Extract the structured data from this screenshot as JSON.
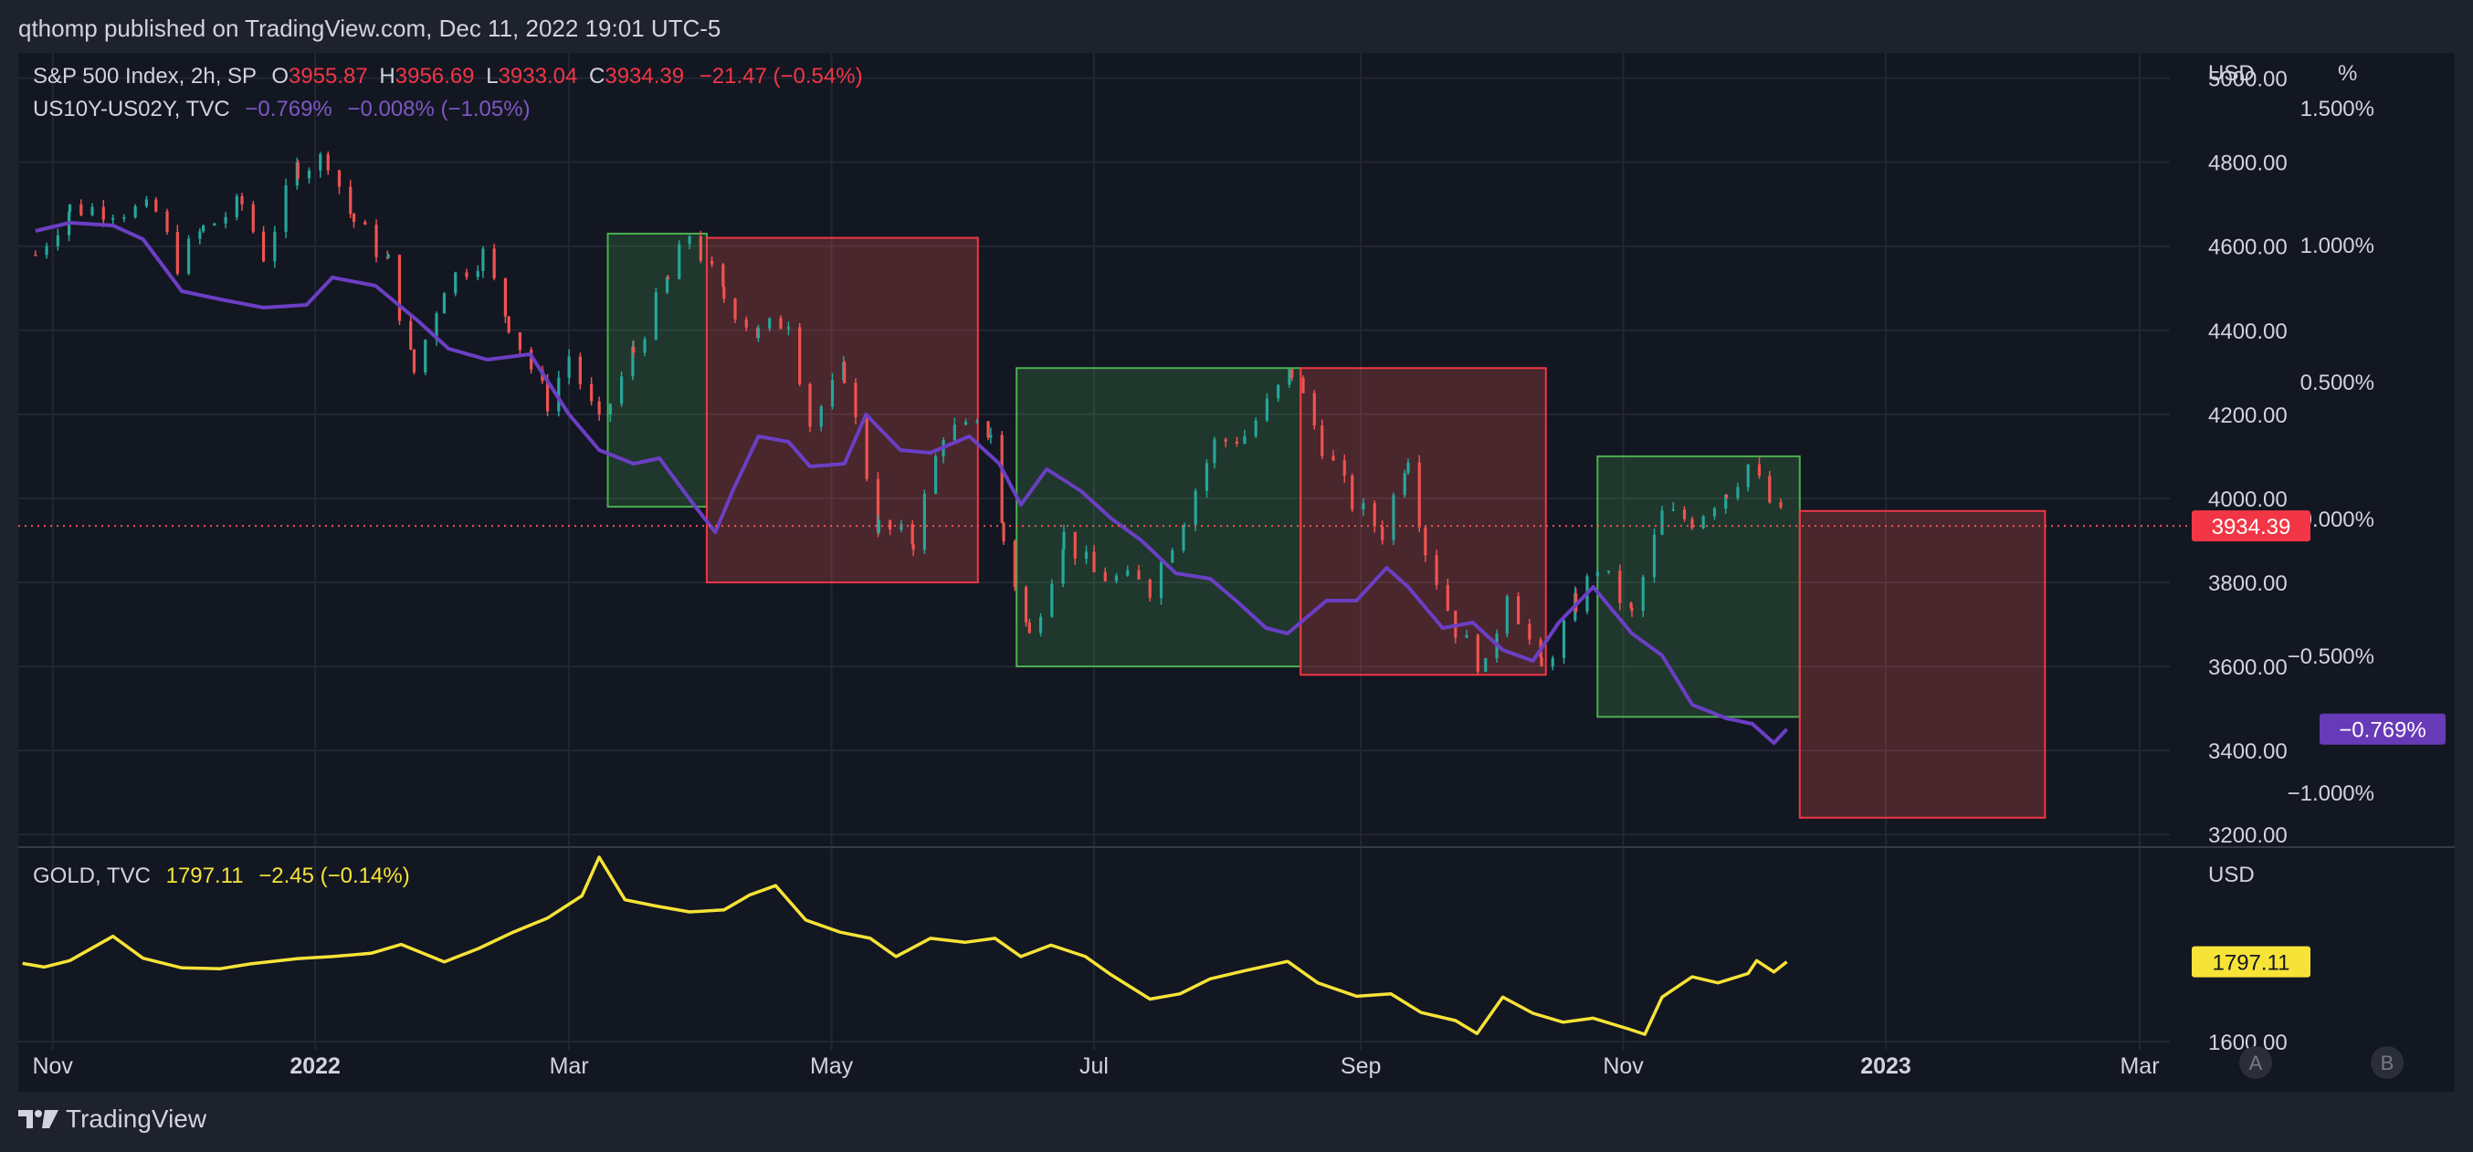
{
  "header": {
    "published": "qthomp published on TradingView.com, Dec 11, 2022 19:01 UTC-5"
  },
  "footer": {
    "brand": "TradingView"
  },
  "colors": {
    "background": "#131722",
    "frame": "#1e222d",
    "up": "#26a69a",
    "down": "#ef5350",
    "spread": "#6b3fc4",
    "gold": "#f7e337",
    "box_green_fill": "rgba(76,175,80,0.22)",
    "box_green_stroke": "#4caf50",
    "box_red_fill": "rgba(239,83,80,0.25)",
    "box_red_stroke": "#f23645"
  },
  "legend": {
    "main": {
      "name": "S&P 500 Index, 2h, SP",
      "o_label": "O",
      "o_value": "3955.87",
      "h_label": "H",
      "h_value": "3956.69",
      "l_label": "L",
      "l_value": "3933.04",
      "c_label": "C",
      "c_value": "3934.39",
      "change": "−21.47 (−0.54%)"
    },
    "spread": {
      "name": "US10Y-US02Y, TVC",
      "value": "−0.769%",
      "change": "−0.008% (−1.05%)"
    },
    "gold": {
      "name": "GOLD, TVC",
      "value": "1797.11",
      "change": "−2.45 (−0.14%)"
    }
  },
  "price_tags": {
    "spx": "3934.39",
    "spread": "−0.769%",
    "gold": "1797.11"
  },
  "scale_buttons": [
    "A",
    "B"
  ],
  "chart_data": [
    {
      "type": "candlestick",
      "series": [
        {
          "name": "S&P 500 Index, 2h, SP",
          "points": [
            [
              "2021-10-28",
              4580
            ],
            [
              "2021-11-05",
              4690
            ],
            [
              "2021-11-15",
              4690
            ],
            [
              "2021-11-25",
              4680
            ],
            [
              "2021-11-30",
              4560
            ],
            [
              "2021-12-06",
              4640
            ],
            [
              "2021-12-15",
              4700
            ],
            [
              "2021-12-20",
              4580
            ],
            [
              "2021-12-28",
              4790
            ],
            [
              "2022-01-04",
              4810
            ],
            [
              "2022-01-10",
              4660
            ],
            [
              "2022-01-18",
              4560
            ],
            [
              "2022-01-24",
              4300
            ],
            [
              "2022-01-31",
              4510
            ],
            [
              "2022-02-09",
              4580
            ],
            [
              "2022-02-15",
              4420
            ],
            [
              "2022-02-24",
              4230
            ],
            [
              "2022-03-01",
              4340
            ],
            [
              "2022-03-08",
              4170
            ],
            [
              "2022-03-16",
              4350
            ],
            [
              "2022-03-24",
              4520
            ],
            [
              "2022-03-29",
              4630
            ],
            [
              "2022-04-06",
              4480
            ],
            [
              "2022-04-14",
              4390
            ],
            [
              "2022-04-21",
              4430
            ],
            [
              "2022-04-26",
              4180
            ],
            [
              "2022-05-04",
              4300
            ],
            [
              "2022-05-12",
              3930
            ],
            [
              "2022-05-20",
              3900
            ],
            [
              "2022-05-27",
              4160
            ],
            [
              "2022-06-07",
              4160
            ],
            [
              "2022-06-10",
              3900
            ],
            [
              "2022-06-16",
              3670
            ],
            [
              "2022-06-24",
              3910
            ],
            [
              "2022-07-01",
              3820
            ],
            [
              "2022-07-14",
              3790
            ],
            [
              "2022-07-22",
              3960
            ],
            [
              "2022-07-29",
              4130
            ],
            [
              "2022-08-05",
              4150
            ],
            [
              "2022-08-16",
              4300
            ],
            [
              "2022-08-23",
              4130
            ],
            [
              "2022-08-30",
              3990
            ],
            [
              "2022-09-06",
              3920
            ],
            [
              "2022-09-12",
              4110
            ],
            [
              "2022-09-16",
              3880
            ],
            [
              "2022-09-23",
              3690
            ],
            [
              "2022-09-30",
              3590
            ],
            [
              "2022-10-05",
              3790
            ],
            [
              "2022-10-13",
              3590
            ],
            [
              "2022-10-21",
              3750
            ],
            [
              "2022-10-26",
              3840
            ],
            [
              "2022-11-03",
              3720
            ],
            [
              "2022-11-10",
              3960
            ],
            [
              "2022-11-17",
              3950
            ],
            [
              "2022-11-25",
              4020
            ],
            [
              "2022-11-30",
              4080
            ],
            [
              "2022-12-05",
              3990
            ],
            [
              "2022-12-09",
              3934.39
            ]
          ]
        },
        {
          "name": "US10Y-US02Y, TVC",
          "points": [
            [
              "2021-10-28",
              1.05
            ],
            [
              "2021-11-05",
              1.08
            ],
            [
              "2021-11-15",
              1.07
            ],
            [
              "2021-11-22",
              1.02
            ],
            [
              "2021-12-01",
              0.83
            ],
            [
              "2021-12-10",
              0.8
            ],
            [
              "2021-12-20",
              0.77
            ],
            [
              "2021-12-30",
              0.78
            ],
            [
              "2022-01-05",
              0.88
            ],
            [
              "2022-01-15",
              0.85
            ],
            [
              "2022-01-25",
              0.72
            ],
            [
              "2022-02-01",
              0.62
            ],
            [
              "2022-02-10",
              0.58
            ],
            [
              "2022-02-20",
              0.6
            ],
            [
              "2022-03-01",
              0.38
            ],
            [
              "2022-03-08",
              0.25
            ],
            [
              "2022-03-16",
              0.2
            ],
            [
              "2022-03-22",
              0.22
            ],
            [
              "2022-03-30",
              0.05
            ],
            [
              "2022-04-04",
              -0.05
            ],
            [
              "2022-04-08",
              0.1
            ],
            [
              "2022-04-14",
              0.3
            ],
            [
              "2022-04-21",
              0.28
            ],
            [
              "2022-04-26",
              0.19
            ],
            [
              "2022-05-04",
              0.2
            ],
            [
              "2022-05-09",
              0.38
            ],
            [
              "2022-05-17",
              0.25
            ],
            [
              "2022-05-24",
              0.24
            ],
            [
              "2022-06-02",
              0.3
            ],
            [
              "2022-06-09",
              0.2
            ],
            [
              "2022-06-14",
              0.05
            ],
            [
              "2022-06-20",
              0.18
            ],
            [
              "2022-06-28",
              0.1
            ],
            [
              "2022-07-05",
              0.0
            ],
            [
              "2022-07-12",
              -0.08
            ],
            [
              "2022-07-20",
              -0.2
            ],
            [
              "2022-07-28",
              -0.22
            ],
            [
              "2022-08-03",
              -0.3
            ],
            [
              "2022-08-10",
              -0.4
            ],
            [
              "2022-08-15",
              -0.42
            ],
            [
              "2022-08-24",
              -0.3
            ],
            [
              "2022-08-31",
              -0.3
            ],
            [
              "2022-09-07",
              -0.18
            ],
            [
              "2022-09-12",
              -0.25
            ],
            [
              "2022-09-20",
              -0.4
            ],
            [
              "2022-09-27",
              -0.38
            ],
            [
              "2022-10-04",
              -0.48
            ],
            [
              "2022-10-11",
              -0.52
            ],
            [
              "2022-10-17",
              -0.38
            ],
            [
              "2022-10-25",
              -0.25
            ],
            [
              "2022-11-03",
              -0.42
            ],
            [
              "2022-11-10",
              -0.5
            ],
            [
              "2022-11-17",
              -0.68
            ],
            [
              "2022-11-25",
              -0.73
            ],
            [
              "2022-12-01",
              -0.75
            ],
            [
              "2022-12-06",
              -0.82
            ],
            [
              "2022-12-09",
              -0.769
            ]
          ]
        }
      ],
      "x_ticks": [
        {
          "date": "2021-11-01",
          "label": "Nov",
          "bold": false
        },
        {
          "date": "2022-01-01",
          "label": "2022",
          "bold": true
        },
        {
          "date": "2022-03-01",
          "label": "Mar",
          "bold": false
        },
        {
          "date": "2022-05-01",
          "label": "May",
          "bold": false
        },
        {
          "date": "2022-07-01",
          "label": "Jul",
          "bold": false
        },
        {
          "date": "2022-09-01",
          "label": "Sep",
          "bold": false
        },
        {
          "date": "2022-11-01",
          "label": "Nov",
          "bold": false
        },
        {
          "date": "2023-01-01",
          "label": "2023",
          "bold": true
        },
        {
          "date": "2023-03-01",
          "label": "Mar",
          "bold": false
        }
      ],
      "xlim": [
        "2021-10-24",
        "2023-03-08"
      ],
      "y_left": {
        "unit": "USD",
        "ticks": [
          "5000.00",
          "4800.00",
          "4600.00",
          "4400.00",
          "4200.00",
          "4000.00",
          "3800.00",
          "3600.00",
          "3400.00",
          "3200.00"
        ],
        "ylim": [
          3170,
          5060
        ]
      },
      "y_right": {
        "unit": "%",
        "ticks": [
          "1.500%",
          "1.000%",
          "0.500%",
          "0.000%",
          "−0.500%",
          "−1.000%"
        ],
        "ylim": [
          -1.2,
          1.7
        ]
      },
      "last_value_line": 3934.39,
      "boxes": [
        {
          "kind": "green",
          "x0": "2022-03-10",
          "x1": "2022-04-02",
          "y0": 3980,
          "y1": 4630
        },
        {
          "kind": "red",
          "x0": "2022-04-02",
          "x1": "2022-06-04",
          "y0": 3800,
          "y1": 4620
        },
        {
          "kind": "green",
          "x0": "2022-06-13",
          "x1": "2022-08-18",
          "y0": 3600,
          "y1": 4310
        },
        {
          "kind": "red",
          "x0": "2022-08-18",
          "x1": "2022-10-14",
          "y0": 3580,
          "y1": 4310
        },
        {
          "kind": "green",
          "x0": "2022-10-26",
          "x1": "2022-12-12",
          "y0": 3480,
          "y1": 4100
        },
        {
          "kind": "red",
          "x0": "2022-12-12",
          "x1": "2023-02-07",
          "y0": 3240,
          "y1": 3970
        }
      ]
    },
    {
      "type": "line",
      "series": [
        {
          "name": "GOLD, TVC",
          "points": [
            [
              "2021-10-25",
              1793
            ],
            [
              "2021-10-30",
              1784
            ],
            [
              "2021-11-05",
              1800
            ],
            [
              "2021-11-15",
              1860
            ],
            [
              "2021-11-22",
              1806
            ],
            [
              "2021-12-01",
              1782
            ],
            [
              "2021-12-10",
              1780
            ],
            [
              "2021-12-17",
              1792
            ],
            [
              "2021-12-28",
              1805
            ],
            [
              "2022-01-05",
              1810
            ],
            [
              "2022-01-14",
              1818
            ],
            [
              "2022-01-21",
              1840
            ],
            [
              "2022-01-31",
              1797
            ],
            [
              "2022-02-08",
              1830
            ],
            [
              "2022-02-16",
              1870
            ],
            [
              "2022-02-24",
              1905
            ],
            [
              "2022-03-04",
              1960
            ],
            [
              "2022-03-08",
              2055
            ],
            [
              "2022-03-14",
              1950
            ],
            [
              "2022-03-21",
              1935
            ],
            [
              "2022-03-29",
              1920
            ],
            [
              "2022-04-06",
              1925
            ],
            [
              "2022-04-12",
              1962
            ],
            [
              "2022-04-18",
              1985
            ],
            [
              "2022-04-25",
              1900
            ],
            [
              "2022-05-03",
              1870
            ],
            [
              "2022-05-10",
              1855
            ],
            [
              "2022-05-16",
              1810
            ],
            [
              "2022-05-24",
              1855
            ],
            [
              "2022-06-01",
              1845
            ],
            [
              "2022-06-08",
              1855
            ],
            [
              "2022-06-14",
              1810
            ],
            [
              "2022-06-21",
              1838
            ],
            [
              "2022-06-29",
              1810
            ],
            [
              "2022-07-05",
              1765
            ],
            [
              "2022-07-14",
              1705
            ],
            [
              "2022-07-21",
              1718
            ],
            [
              "2022-07-28",
              1755
            ],
            [
              "2022-08-05",
              1775
            ],
            [
              "2022-08-15",
              1798
            ],
            [
              "2022-08-22",
              1745
            ],
            [
              "2022-08-31",
              1712
            ],
            [
              "2022-09-08",
              1718
            ],
            [
              "2022-09-15",
              1672
            ],
            [
              "2022-09-23",
              1652
            ],
            [
              "2022-09-28",
              1620
            ],
            [
              "2022-10-04",
              1710
            ],
            [
              "2022-10-11",
              1670
            ],
            [
              "2022-10-18",
              1648
            ],
            [
              "2022-10-25",
              1658
            ],
            [
              "2022-11-02",
              1632
            ],
            [
              "2022-11-06",
              1618
            ],
            [
              "2022-11-10",
              1710
            ],
            [
              "2022-11-17",
              1760
            ],
            [
              "2022-11-23",
              1745
            ],
            [
              "2022-11-30",
              1768
            ],
            [
              "2022-12-02",
              1800
            ],
            [
              "2022-12-06",
              1772
            ],
            [
              "2022-12-09",
              1797.11
            ]
          ]
        }
      ],
      "y_left": {
        "unit": "USD",
        "ticks": [
          "1600.00"
        ],
        "ylim": [
          1580,
          2080
        ]
      }
    }
  ]
}
